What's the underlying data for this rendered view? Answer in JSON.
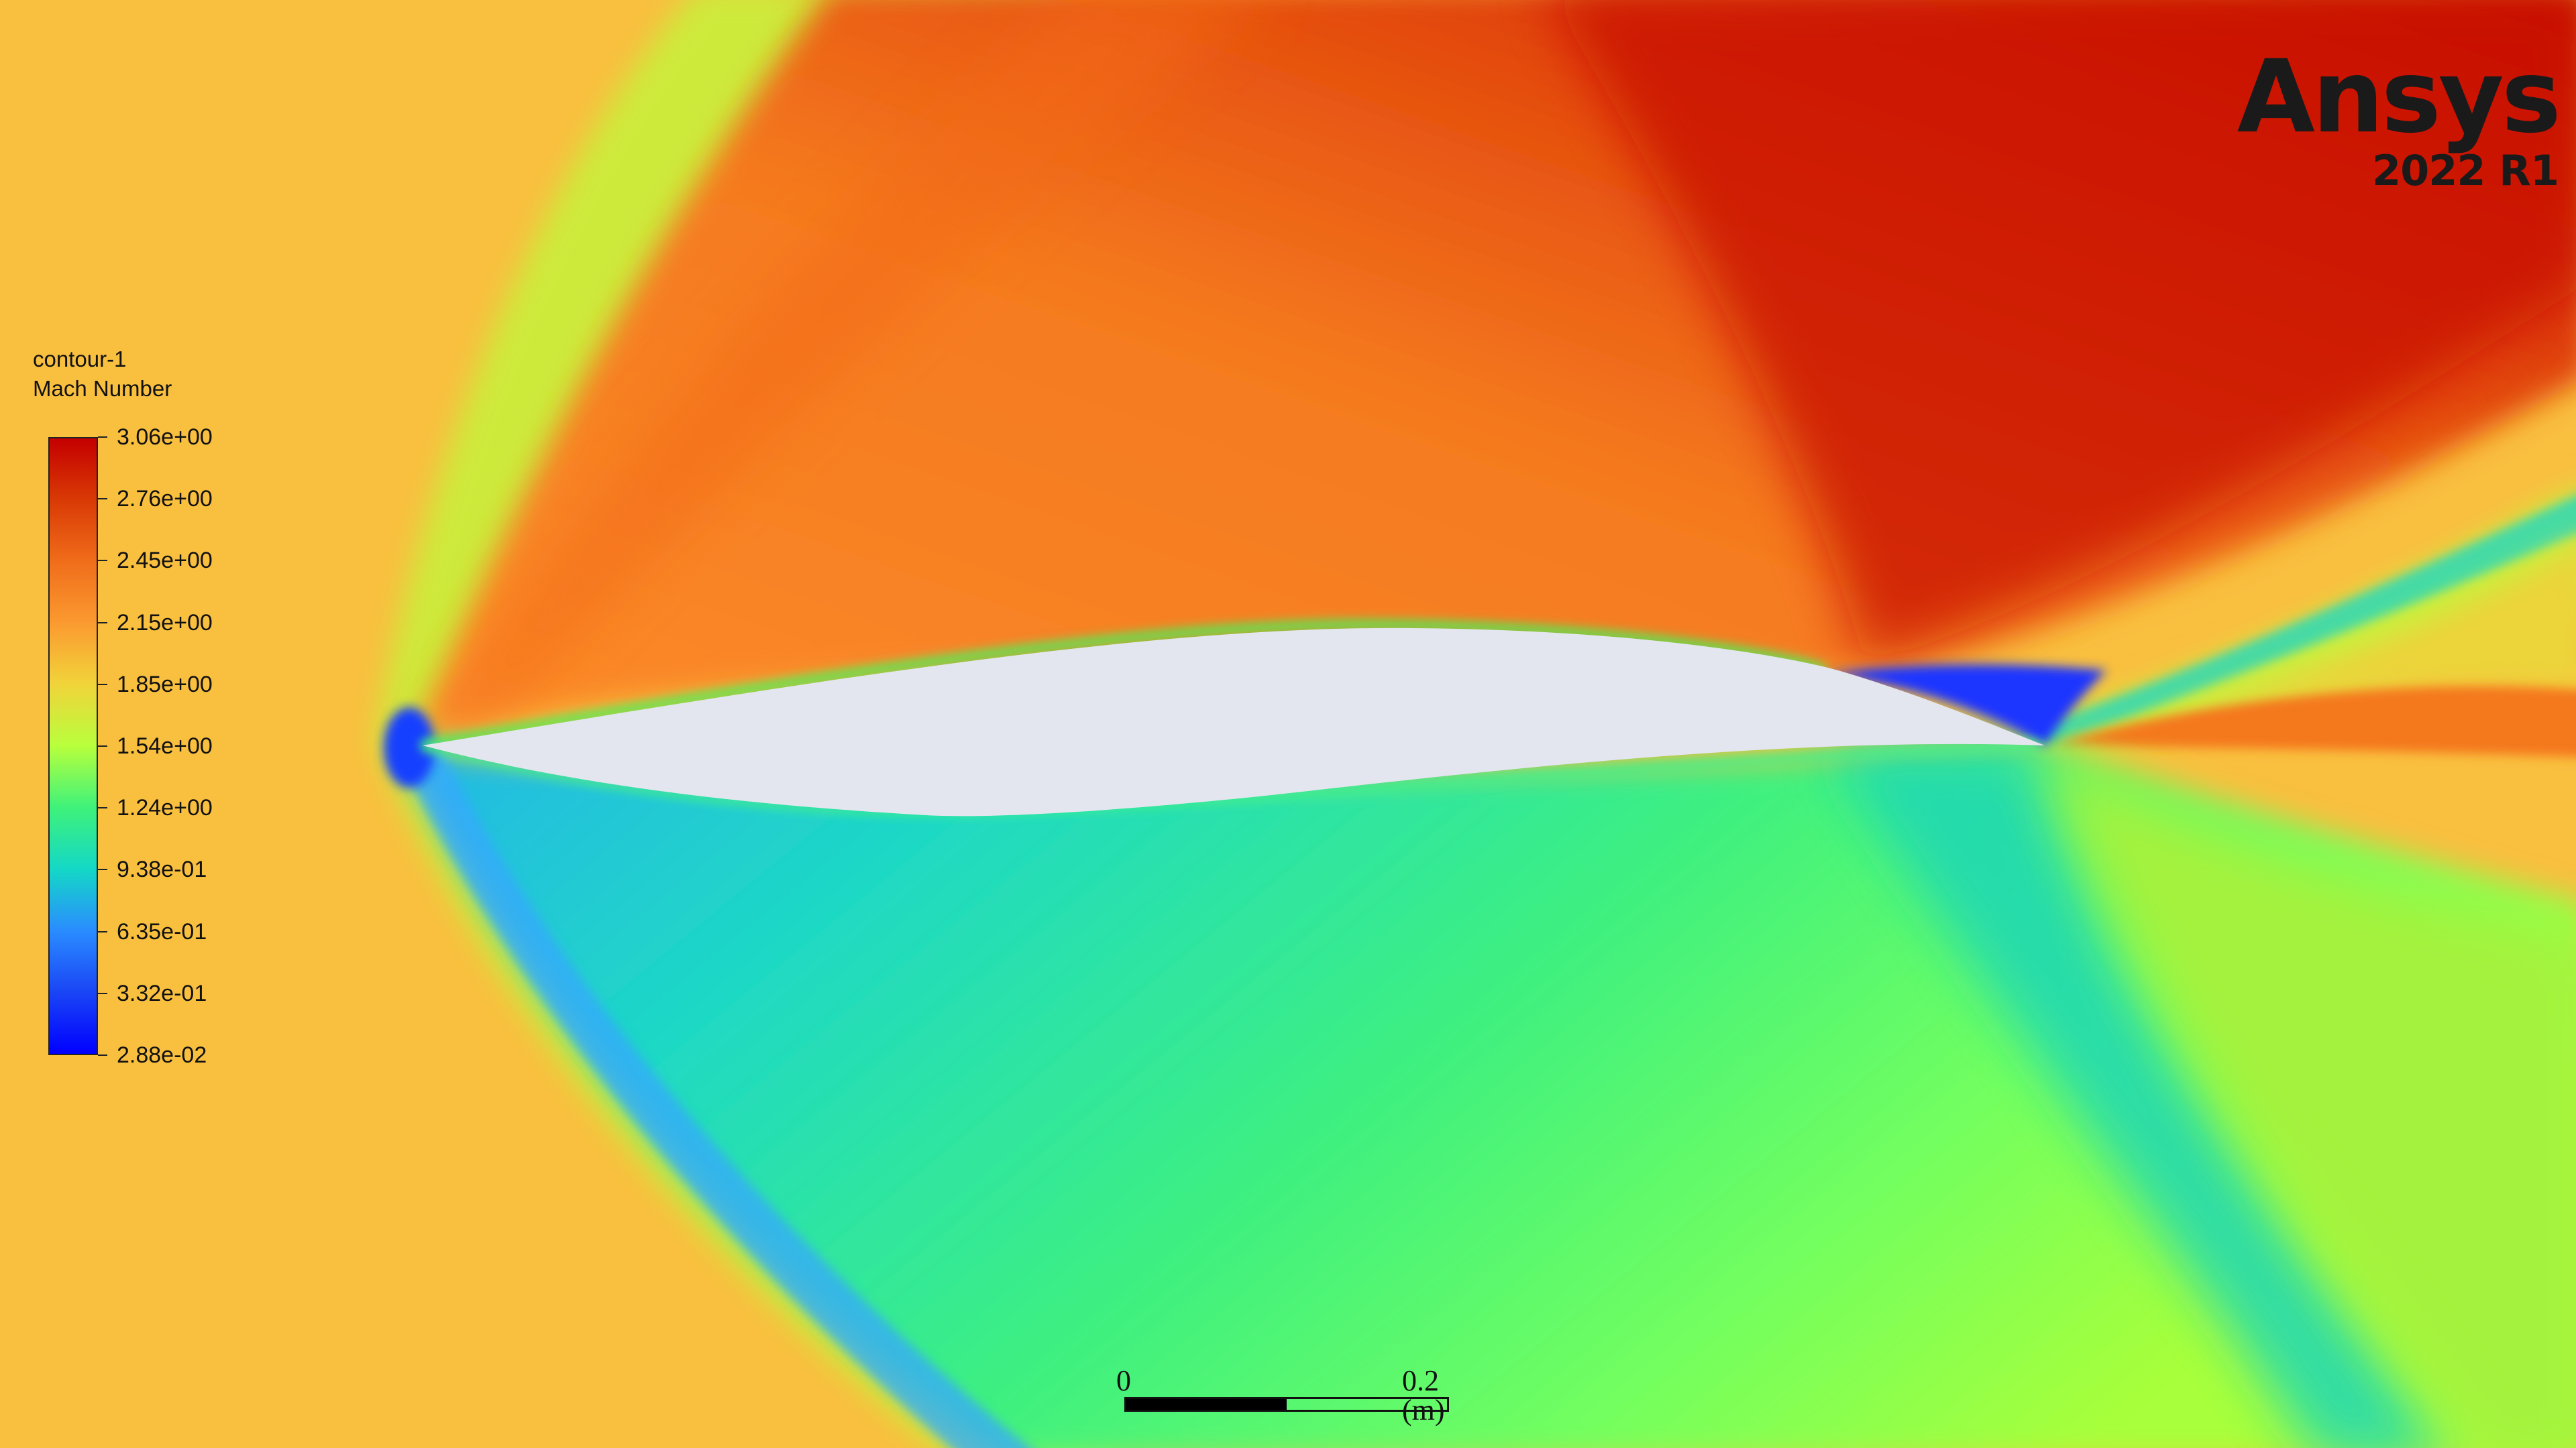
{
  "app": {
    "brand": "Ansys",
    "version": "2022 R1"
  },
  "legend": {
    "title": "contour-1",
    "variable": "Mach Number",
    "ticks": [
      "3.06e+00",
      "2.76e+00",
      "2.45e+00",
      "2.15e+00",
      "1.85e+00",
      "1.54e+00",
      "1.24e+00",
      "9.38e-01",
      "6.35e-01",
      "3.32e-01",
      "2.88e-02"
    ],
    "colormap": [
      "#c40000",
      "#d93a05",
      "#f06d1a",
      "#fb9a30",
      "#f1d43a",
      "#b8ff3c",
      "#3ef27a",
      "#14d8c6",
      "#2a8cff",
      "#1a45f5",
      "#0000ff"
    ]
  },
  "scale_bar": {
    "start_label": "0",
    "end_label": "0.2 (m)"
  },
  "colors": {
    "freestream": "#f9bf3f",
    "airfoil_surface": "#e4e6ef",
    "max_mach": "#c40000",
    "min_mach": "#0000ff"
  }
}
